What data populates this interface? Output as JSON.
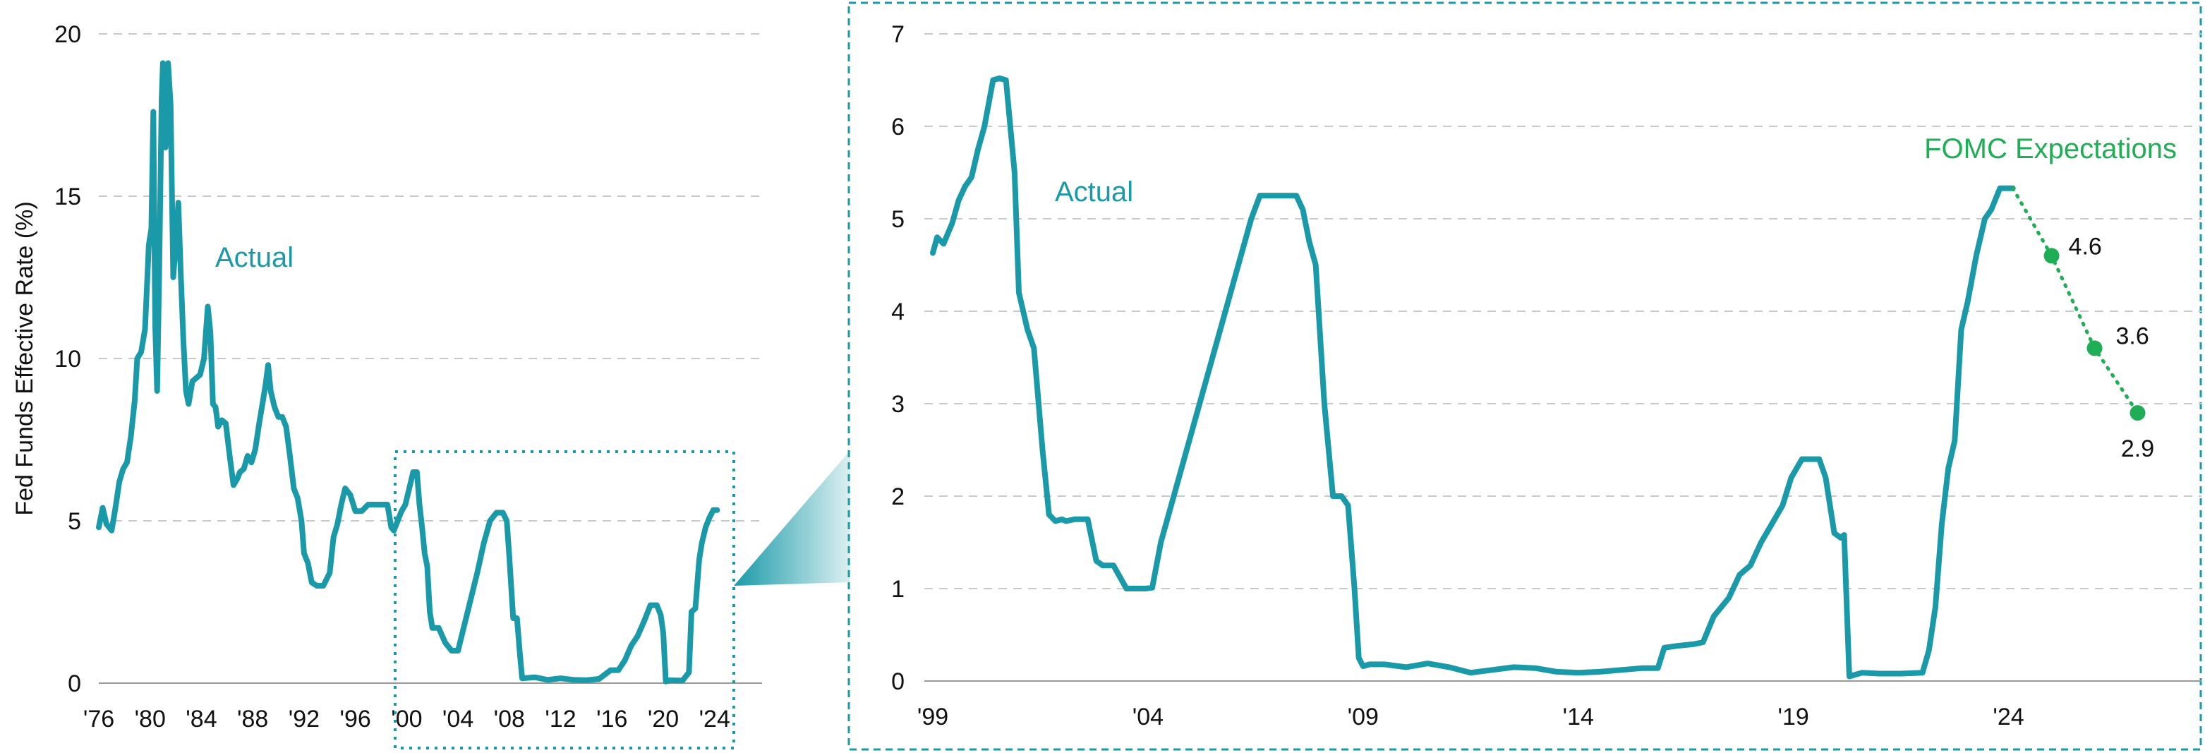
{
  "colors": {
    "actual": "#1a9aa8",
    "fomc": "#1fae55",
    "callout_border": "#1a9aa8"
  },
  "chart_data": [
    {
      "type": "line",
      "title": "",
      "xlabel": "",
      "ylabel": "Fed Funds Effective Rate (%)",
      "xlim": [
        1976,
        2025.5
      ],
      "ylim": [
        0,
        20
      ],
      "yticks": [
        0,
        5,
        10,
        15,
        20
      ],
      "ytick_labels": [
        "0",
        "5",
        "10",
        "15",
        "20"
      ],
      "xticks": [
        1976,
        1980,
        1984,
        1988,
        1992,
        1996,
        2000,
        2004,
        2008,
        2012,
        2016,
        2020,
        2024
      ],
      "xtick_labels": [
        "'76",
        "'80",
        "'84",
        "'88",
        "'92",
        "'96",
        "'00",
        "'04",
        "'08",
        "'12",
        "'16",
        "'20",
        "'24"
      ],
      "grid": true,
      "series": [
        {
          "name": "Actual",
          "x": [
            1976.0,
            1976.3,
            1976.6,
            1977.0,
            1977.3,
            1977.6,
            1977.9,
            1978.2,
            1978.5,
            1978.8,
            1979.0,
            1979.3,
            1979.6,
            1979.9,
            1980.1,
            1980.25,
            1980.4,
            1980.55,
            1980.7,
            1980.9,
            1981.0,
            1981.2,
            1981.4,
            1981.6,
            1981.8,
            1982.0,
            1982.2,
            1982.4,
            1982.6,
            1982.8,
            1983.0,
            1983.3,
            1983.6,
            1983.9,
            1984.2,
            1984.5,
            1984.7,
            1984.9,
            1985.1,
            1985.3,
            1985.6,
            1985.9,
            1986.2,
            1986.5,
            1986.8,
            1987.0,
            1987.3,
            1987.6,
            1987.9,
            1988.2,
            1988.5,
            1988.8,
            1989.0,
            1989.2,
            1989.4,
            1989.7,
            1990.0,
            1990.3,
            1990.6,
            1990.9,
            1991.2,
            1991.5,
            1991.8,
            1992.0,
            1992.3,
            1992.6,
            1993.0,
            1993.5,
            1994.0,
            1994.3,
            1994.6,
            1994.9,
            1995.2,
            1995.6,
            1996.0,
            1996.5,
            1997.0,
            1997.5,
            1998.0,
            1998.5,
            1998.8,
            1999.0,
            1999.3,
            1999.6,
            1999.9,
            2000.2,
            2000.5,
            2000.8,
            2001.0,
            2001.2,
            2001.4,
            2001.6,
            2001.8,
            2002.0,
            2002.5,
            2003.0,
            2003.5,
            2004.0,
            2004.5,
            2005.0,
            2005.5,
            2006.0,
            2006.5,
            2007.0,
            2007.5,
            2007.8,
            2008.0,
            2008.3,
            2008.6,
            2008.8,
            2009.0,
            2010.0,
            2011.0,
            2012.0,
            2013.0,
            2014.0,
            2015.0,
            2015.9,
            2016.5,
            2017.0,
            2017.5,
            2018.0,
            2018.5,
            2019.0,
            2019.5,
            2019.8,
            2020.0,
            2020.2,
            2020.5,
            2021.0,
            2021.5,
            2022.0,
            2022.2,
            2022.5,
            2022.8,
            2023.0,
            2023.3,
            2023.6,
            2023.9,
            2024.2
          ],
          "y": [
            4.8,
            5.4,
            4.9,
            4.7,
            5.4,
            6.2,
            6.6,
            6.8,
            7.6,
            8.7,
            10.0,
            10.2,
            10.9,
            13.5,
            14.0,
            17.6,
            11.0,
            9.0,
            12.5,
            18.0,
            19.1,
            16.5,
            19.1,
            17.8,
            12.5,
            13.5,
            14.8,
            12.5,
            10.5,
            9.0,
            8.6,
            9.3,
            9.4,
            9.5,
            10.0,
            11.6,
            10.8,
            8.6,
            8.5,
            7.9,
            8.1,
            8.0,
            7.0,
            6.1,
            6.3,
            6.5,
            6.6,
            7.0,
            6.8,
            7.2,
            8.0,
            8.7,
            9.2,
            9.8,
            9.0,
            8.5,
            8.2,
            8.2,
            7.9,
            7.0,
            6.0,
            5.7,
            5.0,
            4.0,
            3.7,
            3.1,
            3.0,
            3.0,
            3.4,
            4.5,
            4.9,
            5.5,
            6.0,
            5.8,
            5.3,
            5.3,
            5.5,
            5.5,
            5.5,
            5.5,
            4.8,
            4.7,
            5.0,
            5.3,
            5.5,
            6.0,
            6.5,
            6.5,
            5.5,
            4.8,
            4.0,
            3.6,
            2.2,
            1.7,
            1.7,
            1.25,
            1.0,
            1.0,
            1.8,
            2.6,
            3.4,
            4.3,
            5.0,
            5.25,
            5.25,
            5.0,
            3.9,
            2.0,
            2.0,
            1.0,
            0.15,
            0.18,
            0.1,
            0.15,
            0.1,
            0.09,
            0.13,
            0.4,
            0.4,
            0.7,
            1.15,
            1.45,
            1.9,
            2.4,
            2.4,
            2.1,
            1.55,
            0.05,
            0.09,
            0.08,
            0.08,
            0.33,
            2.2,
            2.3,
            3.8,
            4.3,
            4.8,
            5.1,
            5.33,
            5.33
          ]
        }
      ]
    },
    {
      "type": "line",
      "title": "",
      "xlabel": "",
      "ylabel": "",
      "xlim": [
        1999,
        2027.5
      ],
      "ylim": [
        0,
        7
      ],
      "yticks": [
        0,
        1,
        2,
        3,
        4,
        5,
        6,
        7
      ],
      "ytick_labels": [
        "0",
        "1",
        "2",
        "3",
        "4",
        "5",
        "6",
        "7"
      ],
      "xticks": [
        1999,
        2004,
        2009,
        2014,
        2019,
        2024
      ],
      "xtick_labels": [
        "'99",
        "'04",
        "'09",
        "'14",
        "'19",
        "'24"
      ],
      "grid": true,
      "series": [
        {
          "name": "Actual",
          "x": [
            1999.0,
            1999.1,
            1999.25,
            1999.45,
            1999.6,
            1999.75,
            1999.9,
            2000.05,
            2000.2,
            2000.4,
            2000.55,
            2000.7,
            2000.9,
            2001.0,
            2001.2,
            2001.35,
            2001.55,
            2001.7,
            2001.85,
            2002.0,
            2002.1,
            2002.3,
            2002.6,
            2002.8,
            2002.95,
            2003.05,
            2003.2,
            2003.5,
            2003.8,
            2003.95,
            2004.1,
            2004.3,
            2004.6,
            2004.9,
            2005.2,
            2005.5,
            2005.8,
            2006.1,
            2006.4,
            2006.6,
            2006.85,
            2007.2,
            2007.45,
            2007.6,
            2007.75,
            2007.9,
            2008.1,
            2008.3,
            2008.5,
            2008.65,
            2008.8,
            2008.9,
            2009.0,
            2009.15,
            2009.5,
            2010.0,
            2010.5,
            2011.0,
            2011.5,
            2012.0,
            2012.5,
            2013.0,
            2013.5,
            2014.0,
            2014.5,
            2015.0,
            2015.5,
            2015.85,
            2016.0,
            2016.3,
            2016.7,
            2016.9,
            2017.15,
            2017.5,
            2017.75,
            2018.0,
            2018.25,
            2018.5,
            2018.75,
            2018.95,
            2019.2,
            2019.45,
            2019.6,
            2019.75,
            2019.95,
            2020.1,
            2020.18,
            2020.3,
            2020.6,
            2021.0,
            2021.5,
            2022.0,
            2022.15,
            2022.3,
            2022.45,
            2022.6,
            2022.75,
            2022.9,
            2023.05,
            2023.25,
            2023.45,
            2023.6,
            2023.8,
            2024.0,
            2024.1
          ],
          "y": [
            4.63,
            4.8,
            4.73,
            4.95,
            5.2,
            5.35,
            5.45,
            5.75,
            6.0,
            6.5,
            6.52,
            6.5,
            5.5,
            4.2,
            3.8,
            3.6,
            2.5,
            1.8,
            1.73,
            1.75,
            1.73,
            1.75,
            1.75,
            1.3,
            1.25,
            1.25,
            1.25,
            1.0,
            1.0,
            1.0,
            1.01,
            1.5,
            2.0,
            2.5,
            3.0,
            3.5,
            4.0,
            4.5,
            5.0,
            5.25,
            5.25,
            5.25,
            5.25,
            5.1,
            4.75,
            4.5,
            3.0,
            2.0,
            2.0,
            1.9,
            1.0,
            0.25,
            0.16,
            0.18,
            0.18,
            0.15,
            0.19,
            0.15,
            0.09,
            0.12,
            0.15,
            0.14,
            0.1,
            0.09,
            0.1,
            0.12,
            0.14,
            0.14,
            0.36,
            0.38,
            0.4,
            0.42,
            0.7,
            0.9,
            1.15,
            1.25,
            1.5,
            1.7,
            1.9,
            2.2,
            2.4,
            2.4,
            2.4,
            2.2,
            1.6,
            1.55,
            1.58,
            0.05,
            0.09,
            0.08,
            0.08,
            0.09,
            0.33,
            0.8,
            1.7,
            2.3,
            2.6,
            3.8,
            4.1,
            4.6,
            5.0,
            5.1,
            5.33,
            5.33,
            5.33
          ]
        },
        {
          "name": "FOMC Expectations",
          "x": [
            2024.1,
            2025.0,
            2026.0,
            2027.0
          ],
          "y": [
            5.33,
            4.6,
            3.6,
            2.9
          ],
          "point_labels": [
            "",
            "4.6",
            "3.6",
            "2.9"
          ]
        }
      ]
    }
  ]
}
